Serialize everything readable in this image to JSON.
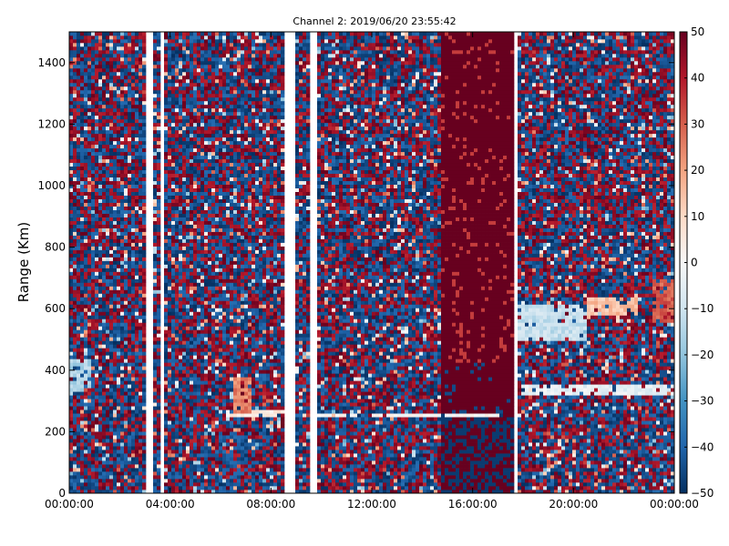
{
  "chart_data": {
    "type": "heatmap",
    "title": "Channel 2: 2019/06/20 23:55:42",
    "ylabel": "Range (Km)",
    "xlabel": "",
    "x_ticks": [
      "00:00:00",
      "04:00:00",
      "08:00:00",
      "12:00:00",
      "16:00:00",
      "20:00:00",
      "00:00:00"
    ],
    "x_range_hours": [
      0,
      24
    ],
    "y_ticks": [
      "0",
      "200",
      "400",
      "600",
      "800",
      "1000",
      "1200",
      "1400"
    ],
    "y_range": [
      0,
      1500
    ],
    "colorbar": {
      "colormap": "RdBu_r",
      "ticks": [
        "50",
        "40",
        "30",
        "20",
        "10",
        "0",
        "−10",
        "−20",
        "−30",
        "−40",
        "−50"
      ],
      "range": [
        -50,
        50
      ]
    },
    "grid": false,
    "data_gaps_hours": [
      [
        3.1,
        3.3
      ],
      [
        3.6,
        3.8
      ],
      [
        8.5,
        8.9
      ],
      [
        9.6,
        9.9
      ],
      [
        17.6,
        17.8
      ]
    ],
    "saturated_band_hours": [
      14.8,
      17.6
    ],
    "saturated_value": 50,
    "echo_features": [
      {
        "hours": [
          0.0,
          0.8
        ],
        "range_km": [
          330,
          440
        ],
        "value": -15
      },
      {
        "hours": [
          6.2,
          9.0
        ],
        "range_km": [
          250,
          270
        ],
        "value": 5
      },
      {
        "hours": [
          6.5,
          7.2
        ],
        "range_km": [
          260,
          380
        ],
        "value": 25
      },
      {
        "hours": [
          9.9,
          17.3
        ],
        "range_km": [
          248,
          256
        ],
        "value": 0
      },
      {
        "hours": [
          17.8,
          20.5
        ],
        "range_km": [
          500,
          620
        ],
        "value": -12
      },
      {
        "hours": [
          18.0,
          24.0
        ],
        "range_km": [
          315,
          350
        ],
        "value": -5
      },
      {
        "hours": [
          20.5,
          22.5
        ],
        "range_km": [
          580,
          640
        ],
        "value": 15
      },
      {
        "hours": [
          23.2,
          24.0
        ],
        "range_km": [
          550,
          700
        ],
        "value": 30
      }
    ],
    "background_distribution": {
      "low_fraction": 0.5,
      "high_fraction": 0.4
    }
  }
}
